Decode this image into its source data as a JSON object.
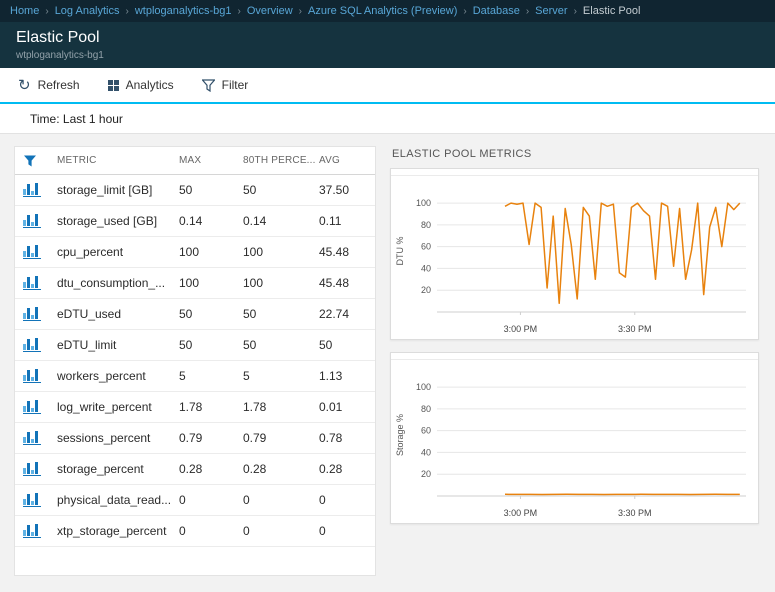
{
  "breadcrumb": {
    "items": [
      {
        "label": "Home"
      },
      {
        "label": "Log Analytics"
      },
      {
        "label": "wtploganalytics-bg1"
      },
      {
        "label": "Overview"
      },
      {
        "label": "Azure SQL Analytics (Preview)"
      },
      {
        "label": "Database"
      },
      {
        "label": "Server"
      },
      {
        "label": "Elastic Pool"
      }
    ]
  },
  "header": {
    "title": "Elastic Pool",
    "subtitle": "wtploganalytics-bg1"
  },
  "toolbar": {
    "refresh": "Refresh",
    "analytics": "Analytics",
    "filter": "Filter"
  },
  "timebar": {
    "label": "Time: Last 1 hour"
  },
  "table": {
    "columns": {
      "metric": "METRIC",
      "max": "MAX",
      "p80": "80TH PERCE...",
      "avg": "AVG"
    },
    "rows": [
      {
        "metric": "storage_limit [GB]",
        "max": "50",
        "p80": "50",
        "avg": "37.50"
      },
      {
        "metric": "storage_used [GB]",
        "max": "0.14",
        "p80": "0.14",
        "avg": "0.11"
      },
      {
        "metric": "cpu_percent",
        "max": "100",
        "p80": "100",
        "avg": "45.48"
      },
      {
        "metric": "dtu_consumption_...",
        "max": "100",
        "p80": "100",
        "avg": "45.48"
      },
      {
        "metric": "eDTU_used",
        "max": "50",
        "p80": "50",
        "avg": "22.74"
      },
      {
        "metric": "eDTU_limit",
        "max": "50",
        "p80": "50",
        "avg": "50"
      },
      {
        "metric": "workers_percent",
        "max": "5",
        "p80": "5",
        "avg": "1.13"
      },
      {
        "metric": "log_write_percent",
        "max": "1.78",
        "p80": "1.78",
        "avg": "0.01"
      },
      {
        "metric": "sessions_percent",
        "max": "0.79",
        "p80": "0.79",
        "avg": "0.78"
      },
      {
        "metric": "storage_percent",
        "max": "0.28",
        "p80": "0.28",
        "avg": "0.28"
      },
      {
        "metric": "physical_data_read...",
        "max": "0",
        "p80": "0",
        "avg": "0"
      },
      {
        "metric": "xtp_storage_percent",
        "max": "0",
        "p80": "0",
        "avg": "0"
      }
    ]
  },
  "charts_section": {
    "title": "ELASTIC POOL METRICS"
  },
  "chart_data": [
    {
      "type": "line",
      "ylabel": "DTU %",
      "yticks": [
        20,
        40,
        60,
        80,
        100
      ],
      "ymax": 112,
      "xticks": [
        {
          "label": "3:00 PM",
          "pos": 0.27
        },
        {
          "label": "3:30 PM",
          "pos": 0.64
        }
      ],
      "x_start": 0.22,
      "x_end": 0.98,
      "color": "#e8820e",
      "values": [
        97,
        100,
        99,
        100,
        62,
        100,
        96,
        22,
        88,
        8,
        95,
        62,
        12,
        96,
        88,
        30,
        100,
        97,
        99,
        36,
        32,
        96,
        100,
        93,
        88,
        30,
        100,
        97,
        42,
        95,
        30,
        57,
        100,
        16,
        78,
        96,
        60,
        100,
        94,
        100
      ]
    },
    {
      "type": "line",
      "ylabel": "Storage %",
      "yticks": [
        20,
        40,
        60,
        80,
        100
      ],
      "ymax": 112,
      "xticks": [
        {
          "label": "3:00 PM",
          "pos": 0.27
        },
        {
          "label": "3:30 PM",
          "pos": 0.64
        }
      ],
      "x_start": 0.22,
      "x_end": 0.98,
      "color": "#e8820e",
      "values": [
        1.6,
        1.5,
        1.5,
        1.4,
        1.5,
        1.6,
        1.5,
        1.5,
        1.4,
        1.5,
        1.5,
        1.6,
        1.5,
        1.5,
        1.5,
        1.4,
        1.5,
        1.6,
        1.5,
        1.5
      ]
    }
  ],
  "colors": {
    "accent": "#00bcf2",
    "line": "#e8820e",
    "link": "#58a6d6"
  }
}
